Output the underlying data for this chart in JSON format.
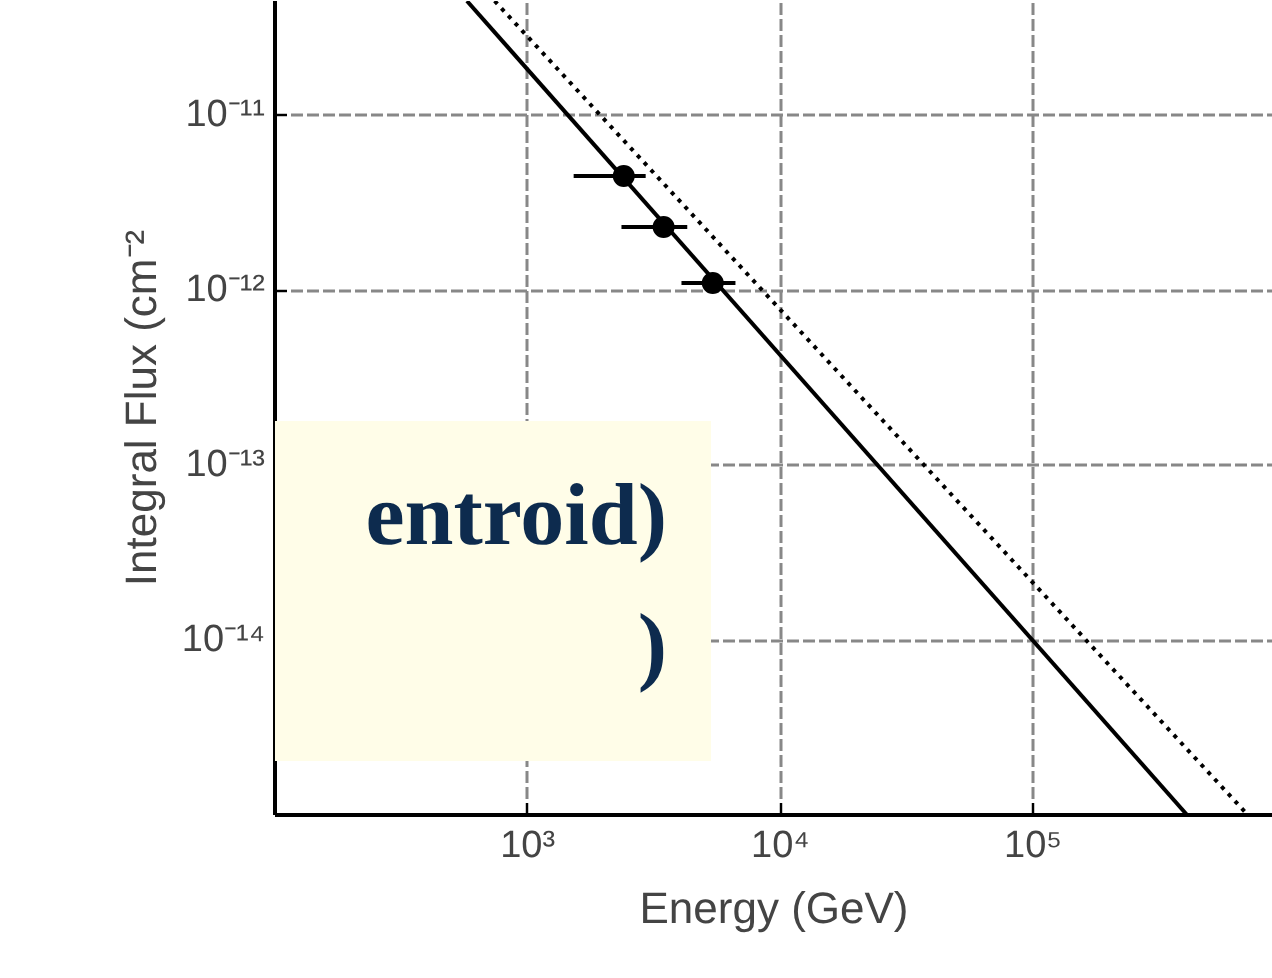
{
  "chart_data": {
    "type": "scatter",
    "xlabel": "Energy (GeV)",
    "ylabel": "Integral Flux (cm⁻²",
    "log": "xy",
    "grid": true,
    "xlim": [
      100,
      890000
    ],
    "ylim": [
      1e-15,
      4.5e-11
    ],
    "xticks": [
      {
        "value": 1000,
        "label": "10³"
      },
      {
        "value": 10000,
        "label": "10⁴"
      },
      {
        "value": 100000,
        "label": "10⁵"
      }
    ],
    "yticks": [
      {
        "value": 1e-14,
        "label": "10⁻¹⁴"
      },
      {
        "value": 1e-13,
        "label": "10⁻¹³"
      },
      {
        "value": 1e-12,
        "label": "10⁻¹²"
      },
      {
        "value": 1e-11,
        "label": "10⁻¹¹"
      }
    ],
    "series": [
      {
        "color": "#000000",
        "marker": "circle",
        "x": [
          2400,
          3450,
          5400
        ],
        "values": [
          4.5e-12,
          2.3e-12,
          1.1e-12
        ],
        "xerrors": [
          [
            1520,
            2930
          ],
          [
            2350,
            4280
          ],
          [
            4060,
            6640
          ]
        ]
      },
      {
        "type": "line",
        "color": "#000000",
        "line_style": "solid",
        "x": [
          575,
          407000
        ],
        "values": [
          4.5e-11,
          1e-15
        ]
      },
      {
        "type": "line",
        "color": "#000000",
        "line_style": "dotted",
        "x": [
          740,
          708000
        ],
        "values": [
          4.5e-11,
          1e-15
        ]
      }
    ],
    "annotations": [
      "entroid)",
      ")"
    ]
  }
}
